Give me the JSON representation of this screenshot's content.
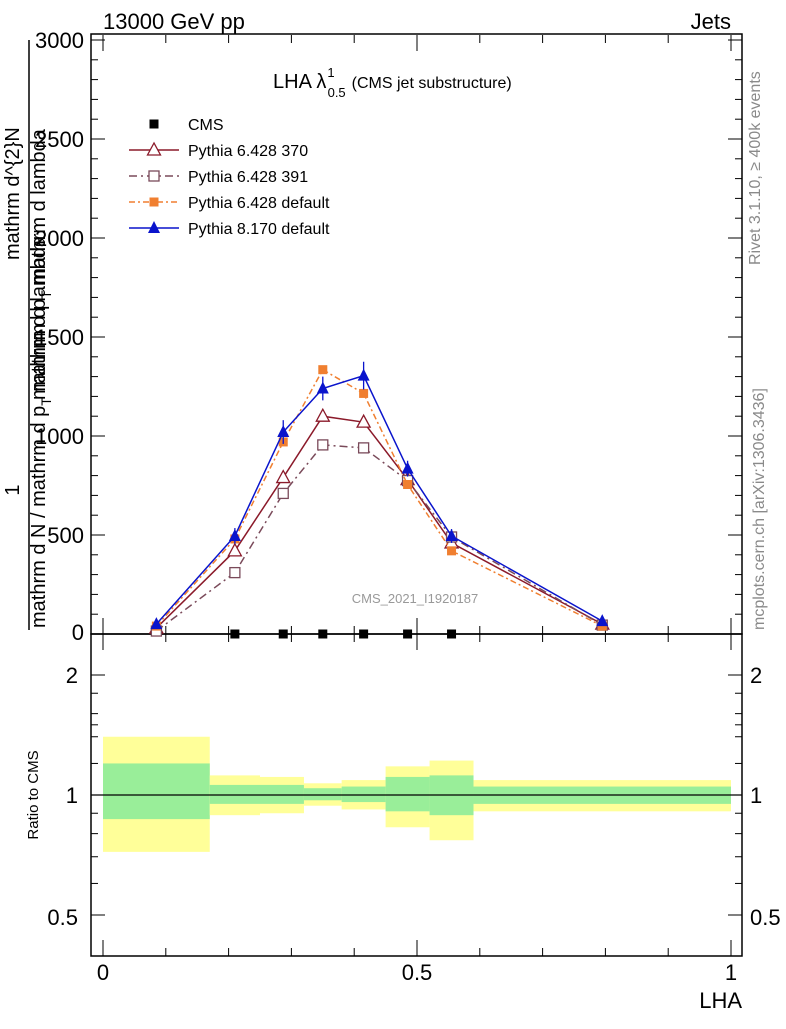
{
  "header": {
    "beam": "13000 GeV pp",
    "category": "Jets"
  },
  "title_main": "LHA λ",
  "title_sup": "1",
  "title_sub": "0.5",
  "title_suffix": "(CMS jet substructure)",
  "watermark": "CMS_2021_I1920187",
  "side_text": {
    "rivet": "Rivet 3.1.10, ≥ 400k events",
    "mcplots": "mcplots.cern.ch [arXiv:1306.3436]"
  },
  "ylabel_main": {
    "numerator": "1",
    "denominator": "mathrm d N / mathrm d p",
    "denominator_sub": "T",
    "denominator_tail": " mathrm d lambda",
    "overlay": "mathrm d^{2}N",
    "overlay2": "mathrm d p",
    "overlay2_sub": "T",
    "overlay2_tail": " mathrm d lambda"
  },
  "ylabel_ratio": "Ratio to CMS",
  "xlabel": "LHA",
  "colors": {
    "cms": "#000000",
    "p370": "#8b1a2a",
    "p391": "#7a4a5a",
    "pdefault": "#f07f30",
    "p8": "#0a14cc",
    "band_outer": "#ffff99",
    "band_inner": "#99ee99"
  },
  "chart_data": {
    "type": "line",
    "xlabel": "LHA",
    "xlim": [
      0,
      1
    ],
    "ylim_main": [
      0,
      3000
    ],
    "ylim_ratio": [
      0.4,
      2.3
    ],
    "x_ticks": [
      "0",
      "0.5",
      "1"
    ],
    "y_ticks_main": [
      "500",
      "1000",
      "1500",
      "2000",
      "2500",
      "3000"
    ],
    "y_ticks_ratio": [
      "0.5",
      "1",
      "2"
    ],
    "bins": [
      [
        0,
        0.17
      ],
      [
        0.17,
        0.25
      ],
      [
        0.25,
        0.32
      ],
      [
        0.32,
        0.38
      ],
      [
        0.38,
        0.45
      ],
      [
        0.45,
        0.52
      ],
      [
        0.52,
        0.59
      ],
      [
        0.59,
        1.0
      ]
    ],
    "series": [
      {
        "name": "CMS",
        "x": [
          0.21,
          0.287,
          0.35,
          0.415,
          0.485,
          0.555
        ],
        "y": [
          0,
          0,
          0,
          0,
          0,
          0
        ]
      },
      {
        "name": "Pythia 6.428 370",
        "x": [
          0.085,
          0.21,
          0.287,
          0.35,
          0.415,
          0.485,
          0.555,
          0.795
        ],
        "y": [
          30,
          420,
          790,
          1100,
          1070,
          780,
          460,
          50
        ]
      },
      {
        "name": "Pythia 6.428 391",
        "x": [
          0.085,
          0.21,
          0.287,
          0.35,
          0.415,
          0.485,
          0.555,
          0.795
        ],
        "y": [
          15,
          310,
          710,
          955,
          940,
          775,
          490,
          45
        ]
      },
      {
        "name": "Pythia 6.428 default",
        "x": [
          0.085,
          0.21,
          0.287,
          0.35,
          0.415,
          0.485,
          0.555,
          0.795
        ],
        "y": [
          40,
          480,
          970,
          1335,
          1215,
          755,
          420,
          40
        ]
      },
      {
        "name": "Pythia 8.170 default",
        "x": [
          0.085,
          0.21,
          0.287,
          0.35,
          0.415,
          0.485,
          0.555,
          0.795
        ],
        "y": [
          50,
          495,
          1020,
          1240,
          1305,
          835,
          495,
          65
        ],
        "yerr": [
          15,
          40,
          60,
          60,
          70,
          40,
          35,
          10
        ]
      }
    ],
    "ratio_bands": {
      "outer": [
        [
          0.72,
          1.4
        ],
        [
          0.89,
          1.12
        ],
        [
          0.9,
          1.11
        ],
        [
          0.94,
          1.07
        ],
        [
          0.92,
          1.09
        ],
        [
          0.83,
          1.18
        ],
        [
          0.77,
          1.22
        ],
        [
          0.91,
          1.09
        ]
      ],
      "inner": [
        [
          0.87,
          1.2
        ],
        [
          0.95,
          1.06
        ],
        [
          0.95,
          1.06
        ],
        [
          0.97,
          1.04
        ],
        [
          0.96,
          1.05
        ],
        [
          0.91,
          1.11
        ],
        [
          0.89,
          1.12
        ],
        [
          0.95,
          1.05
        ]
      ]
    },
    "legend_position": "top-left",
    "grid": false
  }
}
